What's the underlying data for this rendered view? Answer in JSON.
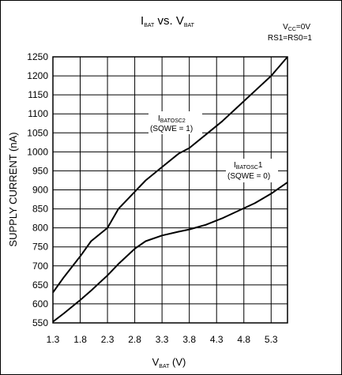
{
  "chart_data": {
    "type": "line",
    "title": {
      "main": "I",
      "sub1": "BAT",
      "mid": " vs. V",
      "sub2": "BAT"
    },
    "conditions": [
      {
        "main": "V",
        "sub": "CC",
        "rest": "=0V"
      },
      {
        "main": "RS1=RS0=1",
        "sub": "",
        "rest": ""
      }
    ],
    "xlabel": {
      "main": "V",
      "sub": "BAT",
      "rest": " (V)"
    },
    "ylabel": "SUPPLY CURRENT (nA)",
    "xlim": [
      1.3,
      5.6
    ],
    "ylim": [
      550,
      1250
    ],
    "x_ticks": [
      "1.3",
      "1.8",
      "2.3",
      "2.8",
      "3.3",
      "3.8",
      "4.3",
      "4.8",
      "5.3"
    ],
    "y_ticks": [
      "550",
      "600",
      "650",
      "700",
      "750",
      "800",
      "850",
      "900",
      "950",
      "1000",
      "1050",
      "1100",
      "1150",
      "1200",
      "1250"
    ],
    "grid": true,
    "series": [
      {
        "name": "IBATOSC2 (SQWE = 1)",
        "label": {
          "main": "I",
          "sub": "BATOSC2",
          "line2": "(SQWE = 1)"
        },
        "x": [
          1.3,
          1.5,
          1.8,
          2.0,
          2.3,
          2.5,
          2.8,
          3.0,
          3.3,
          3.6,
          3.8,
          4.1,
          4.4,
          4.7,
          5.0,
          5.3,
          5.6
        ],
        "y": [
          630,
          670,
          725,
          765,
          800,
          850,
          895,
          925,
          960,
          995,
          1010,
          1045,
          1080,
          1120,
          1160,
          1200,
          1250
        ]
      },
      {
        "name": "IBATOSC1 (SQWE = 0)",
        "label": {
          "main": "I",
          "sub": "BATOSC",
          "suffix": "1",
          "line2": "(SQWE = 0)"
        },
        "x": [
          1.3,
          1.5,
          1.8,
          2.0,
          2.3,
          2.5,
          2.8,
          3.0,
          3.3,
          3.6,
          3.8,
          4.1,
          4.4,
          4.7,
          5.0,
          5.3,
          5.6
        ],
        "y": [
          553,
          575,
          610,
          635,
          675,
          705,
          745,
          765,
          780,
          790,
          796,
          808,
          825,
          845,
          865,
          890,
          920
        ]
      }
    ]
  }
}
